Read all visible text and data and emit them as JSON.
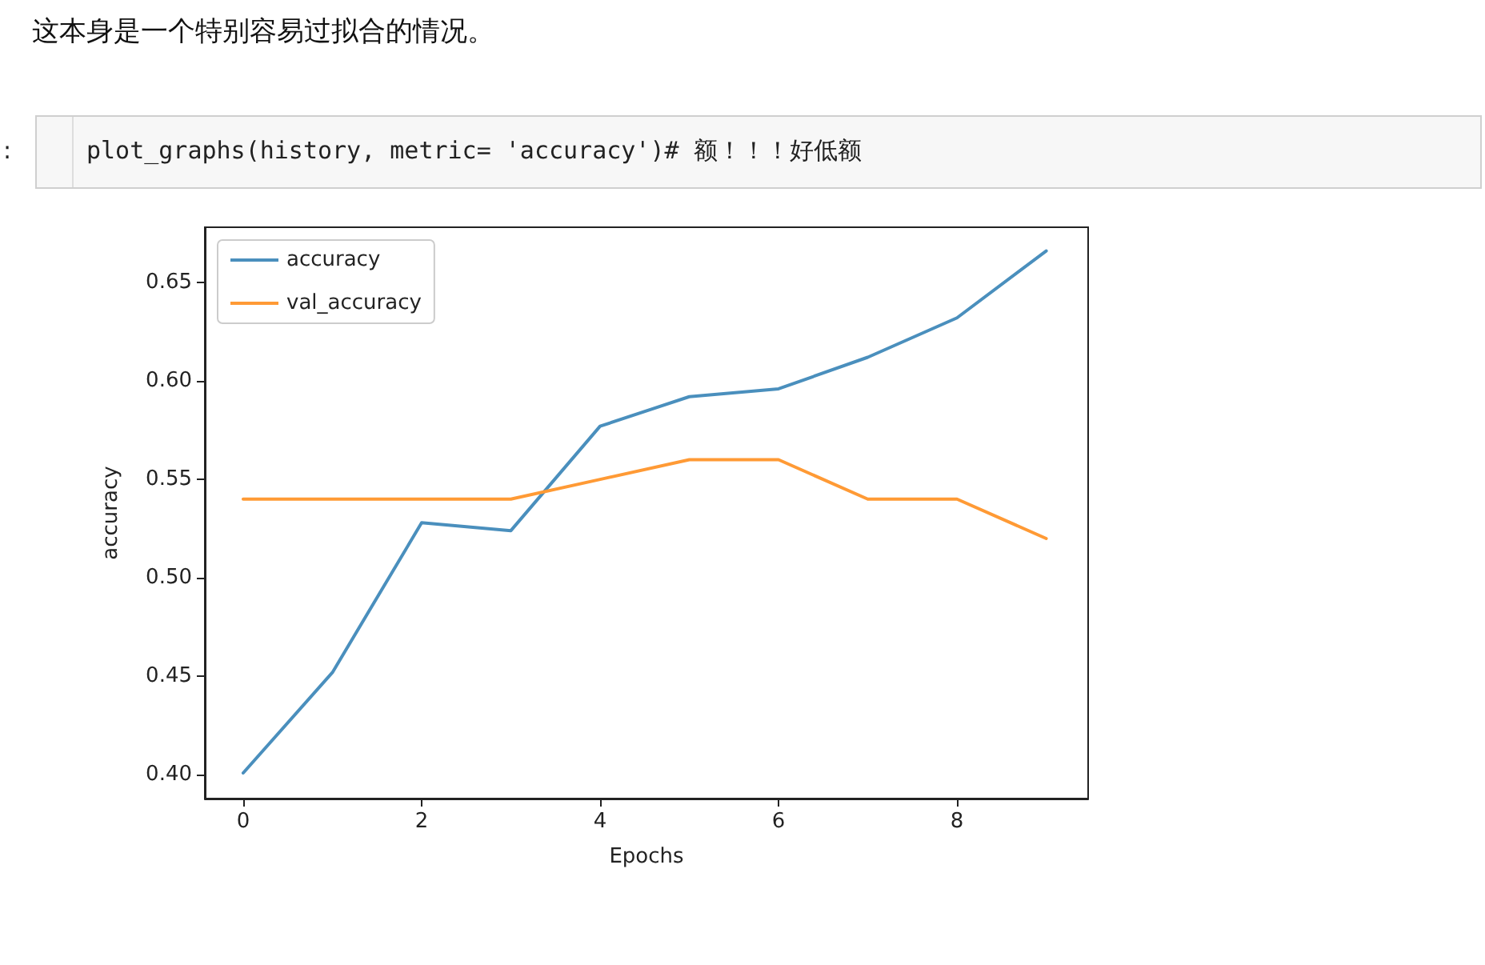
{
  "chart_data": {
    "type": "line",
    "title": "这本身是一个特别容易过拟合的情况。",
    "subtitle": "plot_graphs(history, metric= 'accuracy')# 额！！！好低额",
    "annotations": [
      ":"
    ],
    "xlabel": "Epochs",
    "ylabel": "accuracy",
    "x": [
      0,
      1,
      2,
      3,
      4,
      5,
      6,
      7,
      8,
      9
    ],
    "series": [
      {
        "name": "accuracy",
        "color": "#4a8fbd",
        "values": [
          0.401,
          0.452,
          0.528,
          0.524,
          0.577,
          0.592,
          0.596,
          0.612,
          0.632,
          0.666
        ]
      },
      {
        "name": "val_accuracy",
        "color": "#ff9a35",
        "values": [
          0.54,
          0.54,
          0.54,
          0.54,
          0.55,
          0.56,
          0.56,
          0.54,
          0.54,
          0.52
        ]
      }
    ],
    "xlim": [
      -0.43,
      9.47
    ],
    "xticks": [
      0,
      2,
      4,
      6,
      8
    ],
    "ylim": [
      0.388,
      0.678
    ],
    "yticks": [
      {
        "value": 0.4,
        "label": "0.40"
      },
      0.45,
      {
        "value": 0.5,
        "label": "0.50"
      },
      0.55,
      {
        "value": 0.6,
        "label": "0.60"
      },
      0.65
    ],
    "legend": "top left",
    "grid": false,
    "marker": "none",
    "line_style": "solid"
  }
}
